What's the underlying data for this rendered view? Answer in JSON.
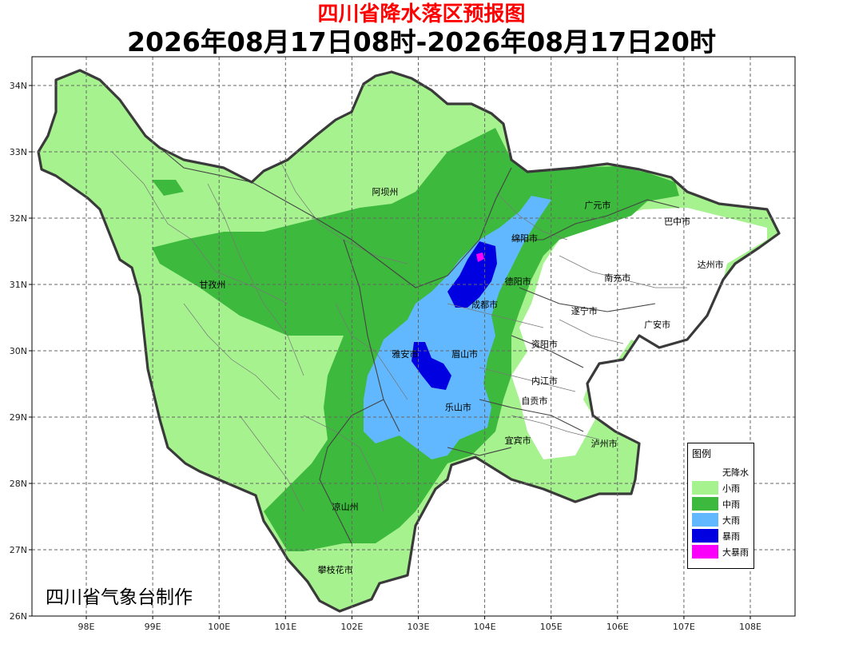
{
  "title": "四川省降水落区预报图",
  "subtitle": "2026年08月17日08时-2026年08月17日20时",
  "producer": "四川省气象台制作",
  "map": {
    "lat_ticks": [
      {
        "value": 34,
        "label": "34N"
      },
      {
        "value": 33,
        "label": "33N"
      },
      {
        "value": 32,
        "label": "32N"
      },
      {
        "value": 31,
        "label": "31N"
      },
      {
        "value": 30,
        "label": "30N"
      },
      {
        "value": 29,
        "label": "29N"
      },
      {
        "value": 28,
        "label": "28N"
      },
      {
        "value": 27,
        "label": "27N"
      },
      {
        "value": 26,
        "label": "26N"
      }
    ],
    "lon_ticks": [
      {
        "value": 98,
        "label": "98E"
      },
      {
        "value": 99,
        "label": "99E"
      },
      {
        "value": 100,
        "label": "100E"
      },
      {
        "value": 101,
        "label": "101E"
      },
      {
        "value": 102,
        "label": "102E"
      },
      {
        "value": 103,
        "label": "103E"
      },
      {
        "value": 104,
        "label": "104E"
      },
      {
        "value": 105,
        "label": "105E"
      },
      {
        "value": 106,
        "label": "106E"
      },
      {
        "value": 107,
        "label": "107E"
      },
      {
        "value": 108,
        "label": "108E"
      }
    ],
    "cities": [
      {
        "name": "阿坝州",
        "lon": 102.5,
        "lat": 32.4
      },
      {
        "name": "甘孜州",
        "lon": 99.9,
        "lat": 31.0
      },
      {
        "name": "凉山州",
        "lon": 101.9,
        "lat": 27.65
      },
      {
        "name": "攀枝花市",
        "lon": 101.75,
        "lat": 26.7
      },
      {
        "name": "广元市",
        "lon": 105.7,
        "lat": 32.2
      },
      {
        "name": "巴中市",
        "lon": 106.9,
        "lat": 31.95
      },
      {
        "name": "绵阳市",
        "lon": 104.6,
        "lat": 31.7
      },
      {
        "name": "德阳市",
        "lon": 104.5,
        "lat": 31.05
      },
      {
        "name": "南充市",
        "lon": 106.0,
        "lat": 31.1
      },
      {
        "name": "达州市",
        "lon": 107.4,
        "lat": 31.3
      },
      {
        "name": "成都市",
        "lon": 104.0,
        "lat": 30.7
      },
      {
        "name": "遂宁市",
        "lon": 105.5,
        "lat": 30.6
      },
      {
        "name": "广安市",
        "lon": 106.6,
        "lat": 30.4
      },
      {
        "name": "资阳市",
        "lon": 104.9,
        "lat": 30.1
      },
      {
        "name": "雅安市",
        "lon": 102.8,
        "lat": 29.95
      },
      {
        "name": "眉山市",
        "lon": 103.7,
        "lat": 29.95
      },
      {
        "name": "内江市",
        "lon": 104.9,
        "lat": 29.55
      },
      {
        "name": "自贡市",
        "lon": 104.75,
        "lat": 29.25
      },
      {
        "name": "乐山市",
        "lon": 103.6,
        "lat": 29.15
      },
      {
        "name": "宜宾市",
        "lon": 104.5,
        "lat": 28.65
      },
      {
        "name": "泸州市",
        "lon": 105.8,
        "lat": 28.6
      }
    ]
  },
  "legend": {
    "title": "图例",
    "items": [
      {
        "label": "无降水",
        "color": "#ffffff"
      },
      {
        "label": "小雨",
        "color": "#a6f28f"
      },
      {
        "label": "中雨",
        "color": "#3dba3d"
      },
      {
        "label": "大雨",
        "color": "#61b8ff"
      },
      {
        "label": "暴雨",
        "color": "#0000e1"
      },
      {
        "label": "大暴雨",
        "color": "#fa00fa"
      }
    ]
  },
  "colors": {
    "light_rain": "#a6f28f",
    "moderate_rain": "#3dba3d",
    "heavy_rain": "#61b8ff",
    "rainstorm": "#0000e1",
    "heavy_rainstorm": "#fa00fa",
    "title_red": "#ff0000"
  }
}
